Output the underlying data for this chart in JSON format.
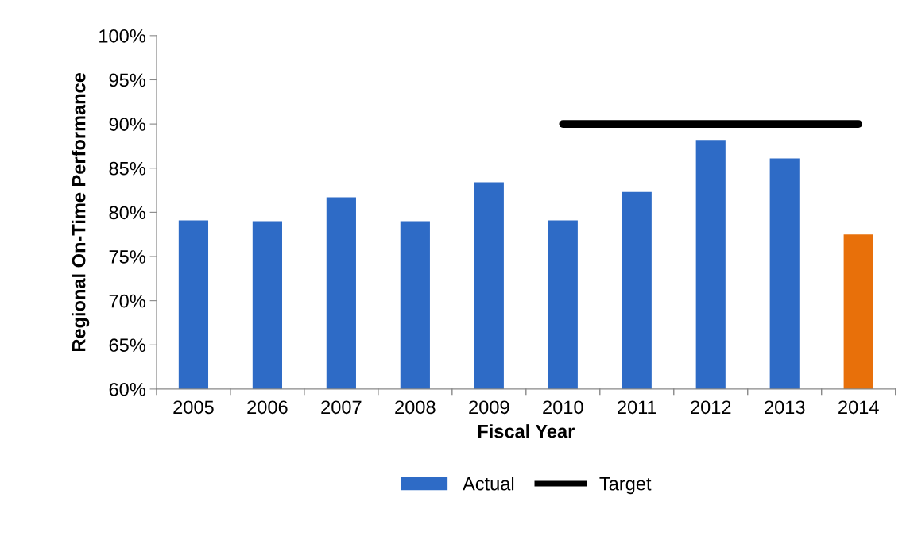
{
  "chart_data": {
    "type": "bar",
    "xlabel": "Fiscal Year",
    "ylabel": "Regional On-Time Performance",
    "categories": [
      "2005",
      "2006",
      "2007",
      "2008",
      "2009",
      "2010",
      "2011",
      "2012",
      "2013",
      "2014"
    ],
    "series": [
      {
        "name": "Actual",
        "color": "#2e6bc6",
        "colors": [
          "#2e6bc6",
          "#2e6bc6",
          "#2e6bc6",
          "#2e6bc6",
          "#2e6bc6",
          "#2e6bc6",
          "#2e6bc6",
          "#2e6bc6",
          "#2e6bc6",
          "#e8700a"
        ],
        "values": [
          79.1,
          79.0,
          81.7,
          79.0,
          83.4,
          79.1,
          82.3,
          88.2,
          86.1,
          77.5
        ]
      },
      {
        "name": "Target",
        "type": "line",
        "color": "#000000",
        "values": [
          null,
          null,
          null,
          null,
          null,
          90,
          90,
          90,
          90,
          90
        ]
      }
    ],
    "ylim": [
      60,
      100
    ],
    "yticks": [
      {
        "value": 60,
        "label": "60%"
      },
      {
        "value": 65,
        "label": "65%"
      },
      {
        "value": 70,
        "label": "70%"
      },
      {
        "value": 75,
        "label": "75%"
      },
      {
        "value": 80,
        "label": "80%"
      },
      {
        "value": 85,
        "label": "85%"
      },
      {
        "value": 90,
        "label": "90%"
      },
      {
        "value": 95,
        "label": "95%"
      },
      {
        "value": 100,
        "label": "100%"
      }
    ],
    "grid": false,
    "legend": "bottom"
  }
}
